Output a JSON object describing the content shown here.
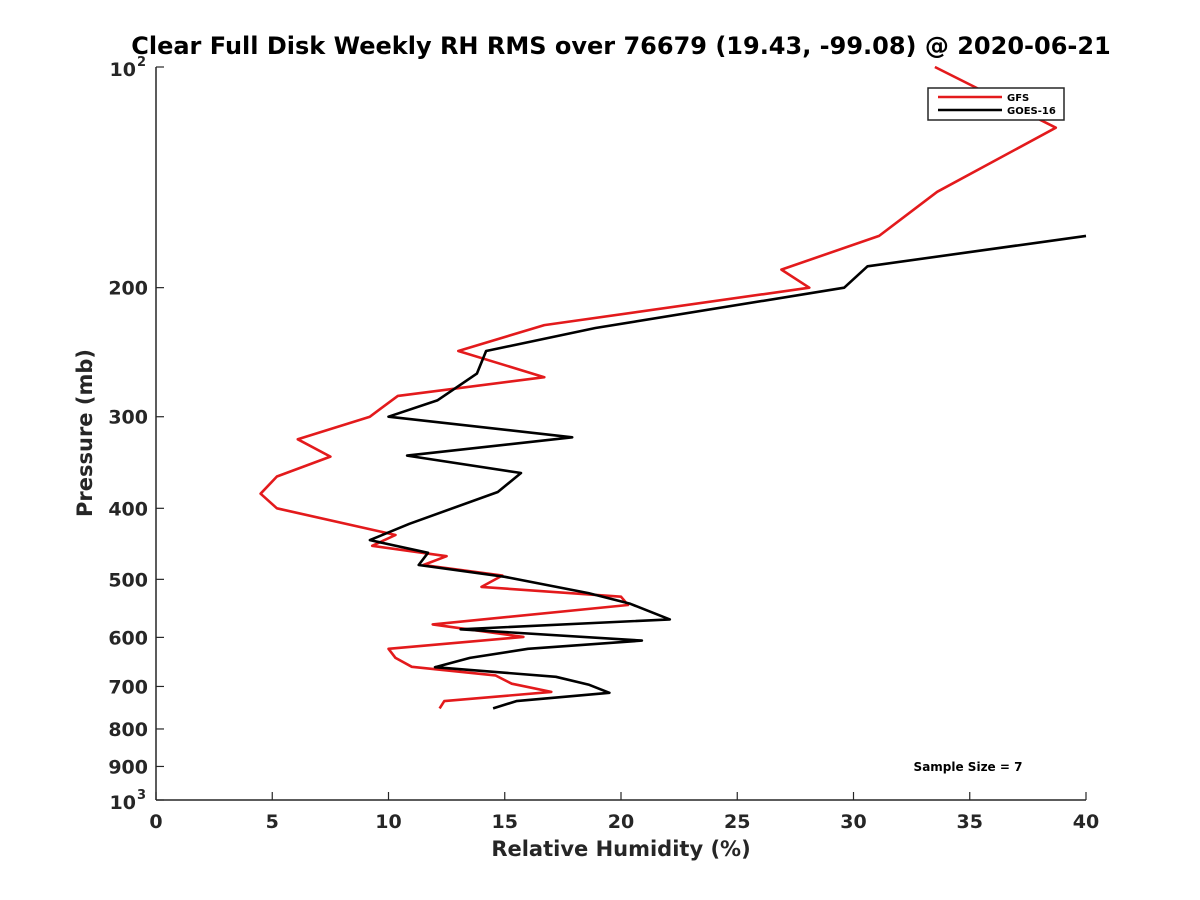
{
  "chart_data": {
    "type": "line",
    "title": "Clear Full Disk Weekly RH RMS over 76679 (19.43, -99.08) @ 2020-06-21",
    "xlabel": "Relative Humidity (%)",
    "ylabel": "Pressure (mb)",
    "xlim": [
      0,
      40
    ],
    "ylim": [
      100,
      1000
    ],
    "yscale": "log",
    "y_reversed": true,
    "grid": false,
    "legend_position": "top-right",
    "x_ticks": [
      {
        "value": 0,
        "label": "0"
      },
      {
        "value": 5,
        "label": "5"
      },
      {
        "value": 10,
        "label": "10"
      },
      {
        "value": 15,
        "label": "15"
      },
      {
        "value": 20,
        "label": "20"
      },
      {
        "value": 25,
        "label": "25"
      },
      {
        "value": 30,
        "label": "30"
      },
      {
        "value": 35,
        "label": "35"
      },
      {
        "value": 40,
        "label": "40"
      }
    ],
    "y_ticks": [
      {
        "value": 100,
        "base": "10",
        "exp": "2"
      },
      {
        "value": 200,
        "label": "200"
      },
      {
        "value": 300,
        "label": "300"
      },
      {
        "value": 400,
        "label": "400"
      },
      {
        "value": 500,
        "label": "500"
      },
      {
        "value": 600,
        "label": "600"
      },
      {
        "value": 700,
        "label": "700"
      },
      {
        "value": 800,
        "label": "800"
      },
      {
        "value": 900,
        "label": "900"
      },
      {
        "value": 1000,
        "base": "10",
        "exp": "3"
      }
    ],
    "annotation": "Sample Size = 7",
    "series": [
      {
        "name": "GFS",
        "color": "#e31a1c",
        "x": [
          33.5,
          38.7,
          33.6,
          31.1,
          26.9,
          28.1,
          16.7,
          13.0,
          16.7,
          10.4,
          9.2,
          6.1,
          7.5,
          5.2,
          4.5,
          5.2,
          10.3,
          9.3,
          12.5,
          11.5,
          14.9,
          14.0,
          20.0,
          20.3,
          11.9,
          15.8,
          10.0,
          10.3,
          11.0,
          14.6,
          15.3,
          17.0,
          12.4,
          12.2
        ],
        "y": [
          100,
          121,
          148,
          170,
          189,
          200,
          225,
          244,
          265,
          281,
          300,
          322,
          340,
          362,
          382,
          400,
          435,
          450,
          465,
          478,
          494,
          512,
          528,
          542,
          576,
          599,
          622,
          640,
          658,
          676,
          694,
          712,
          733,
          750
        ]
      },
      {
        "name": "GOES-16",
        "color": "#000000",
        "x": [
          40.0,
          30.6,
          29.6,
          18.9,
          14.2,
          13.8,
          12.1,
          10.0,
          17.9,
          10.8,
          15.7,
          14.7,
          10.9,
          9.2,
          11.7,
          11.3,
          15.0,
          18.6,
          20.4,
          22.1,
          13.1,
          20.9,
          16.0,
          13.5,
          12.0,
          17.2,
          18.6,
          19.5,
          15.5,
          14.5
        ],
        "y": [
          170,
          187,
          200,
          227,
          244,
          262,
          285,
          300,
          320,
          339,
          358,
          380,
          420,
          442,
          460,
          478,
          496,
          522,
          540,
          567,
          585,
          606,
          622,
          640,
          659,
          679,
          696,
          714,
          733,
          750
        ]
      }
    ]
  }
}
